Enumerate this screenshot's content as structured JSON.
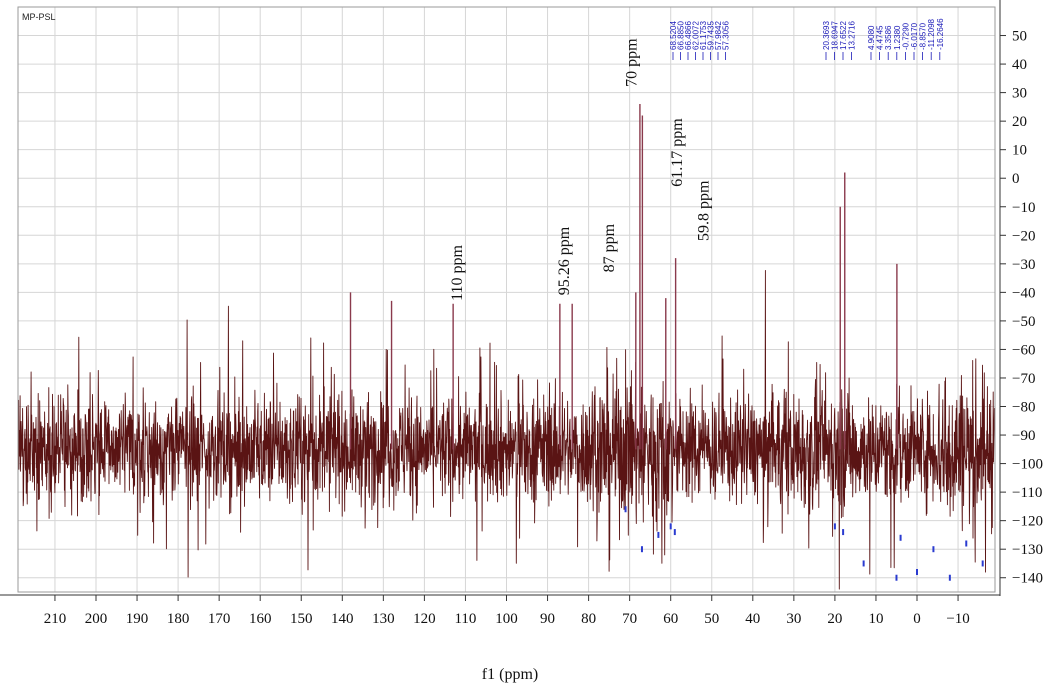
{
  "chart_data": {
    "type": "line",
    "title": "",
    "sample_label": "MP-PSL",
    "xlabel": "f1 (ppm)",
    "ylabel": "",
    "xlim": [
      219,
      -19
    ],
    "ylim": [
      -145,
      60
    ],
    "xticks": [
      210,
      200,
      190,
      180,
      170,
      160,
      150,
      140,
      130,
      120,
      110,
      100,
      90,
      80,
      70,
      60,
      50,
      40,
      30,
      20,
      10,
      0,
      -10
    ],
    "xtick_labels": [
      "210",
      "200",
      "190",
      "180",
      "170",
      "160",
      "150",
      "140",
      "130",
      "120",
      "110",
      "100",
      "90",
      "80",
      "70",
      "60",
      "50",
      "40",
      "30",
      "20",
      "10",
      "0",
      "−10"
    ],
    "yticks": [
      50,
      40,
      30,
      20,
      10,
      0,
      -10,
      -20,
      -30,
      -40,
      -50,
      -60,
      -70,
      -80,
      -90,
      -100,
      -110,
      -120,
      -130,
      -140
    ],
    "ytick_labels": [
      "50",
      "40",
      "30",
      "20",
      "10",
      "0",
      "−10",
      "−20",
      "−30",
      "−40",
      "−50",
      "−60",
      "−70",
      "−80",
      "−90",
      "−100",
      "−110",
      "−120",
      "−130",
      "−140"
    ],
    "grid": true,
    "series": [
      {
        "color": "#5a1414",
        "baseline": -95,
        "noise_band": [
          -125,
          -65
        ]
      }
    ],
    "peaks": [
      {
        "x": 67.5,
        "y": 26
      },
      {
        "x": 66.9,
        "y": 22
      },
      {
        "x": 68.5,
        "y": -40
      },
      {
        "x": 58.8,
        "y": -28
      },
      {
        "x": 61.2,
        "y": -42
      },
      {
        "x": 17.6,
        "y": 2
      },
      {
        "x": 18.7,
        "y": -10
      },
      {
        "x": 4.9,
        "y": -30
      },
      {
        "x": 113,
        "y": -44
      },
      {
        "x": 87,
        "y": -44
      },
      {
        "x": 84,
        "y": -44
      },
      {
        "x": 138,
        "y": -40
      },
      {
        "x": 128,
        "y": -43
      }
    ],
    "peak_labels_group1": [
      "68.5204",
      "66.8850",
      "66.4866",
      "62.0072",
      "61.1753",
      "59.7435",
      "57.9842",
      "57.3056"
    ],
    "peak_labels_group2": [
      "20.3693",
      "18.6947",
      "17.6522",
      "13.2716"
    ],
    "peak_labels_group3": [
      "4.9080",
      "4.4745",
      "3.3586",
      "1.2380",
      "-0.7290",
      "-6.0170",
      "-8.8570",
      "-11.2098",
      "-16.2646"
    ],
    "annotations": [
      {
        "text": "110 ppm",
        "x": 112,
        "y": -43
      },
      {
        "text": "95.26 ppm",
        "x": 86,
        "y": -41
      },
      {
        "text": "87 ppm",
        "x": 75,
        "y": -33
      },
      {
        "text": "70 ppm",
        "x": 69.5,
        "y": 32
      },
      {
        "text": "61.17 ppm",
        "x": 58.5,
        "y": -3
      },
      {
        "text": "59.8 ppm",
        "x": 52,
        "y": -22
      }
    ],
    "markers": [
      {
        "x": 71,
        "y": -116
      },
      {
        "x": 67,
        "y": -130
      },
      {
        "x": 63,
        "y": -125
      },
      {
        "x": 60,
        "y": -122
      },
      {
        "x": 59,
        "y": -124
      },
      {
        "x": 20,
        "y": -122
      },
      {
        "x": 18,
        "y": -124
      },
      {
        "x": 13,
        "y": -135
      },
      {
        "x": 5,
        "y": -140
      },
      {
        "x": 4,
        "y": -126
      },
      {
        "x": 0,
        "y": -138
      },
      {
        "x": -4,
        "y": -130
      },
      {
        "x": -8,
        "y": -140
      },
      {
        "x": -12,
        "y": -128
      },
      {
        "x": -16,
        "y": -135
      }
    ]
  }
}
